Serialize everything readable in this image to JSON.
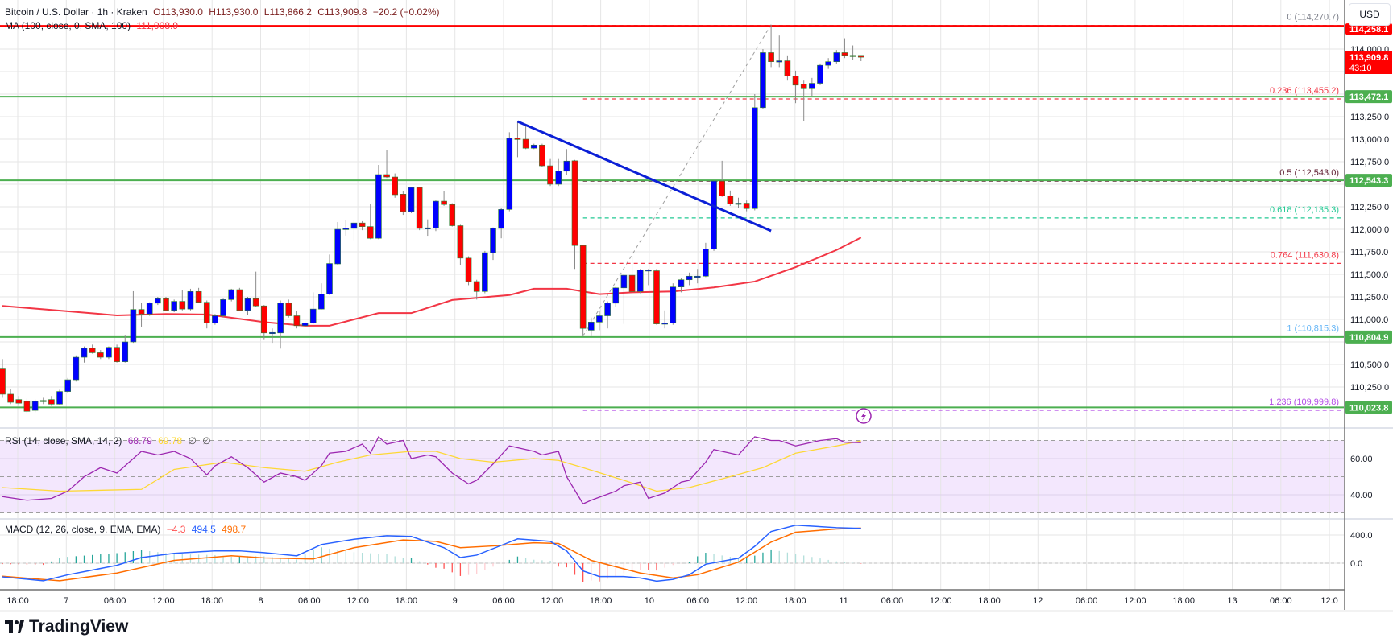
{
  "header": {
    "symbol": "Bitcoin / U.S. Dollar · 1h · Kraken",
    "open": "O113,930.0",
    "high": "H113,930.0",
    "low": "L113,866.2",
    "close": "C113,909.8",
    "change": "−20.2 (−0.02%)",
    "ma_label": "MA (100, close, 0, SMA, 100)",
    "ma_value": "111,908.9"
  },
  "currency_button": "USD",
  "colors": {
    "up": "#0000ff",
    "down": "#ff0000",
    "ma": "#f23645",
    "support": "#4caf50",
    "resistance": "#ff0000",
    "trendline": "#0b1fd6",
    "rsi": "#9c27b0",
    "rsi_sma": "#fdd835",
    "macd": "#2962ff",
    "signal": "#ff6d00"
  },
  "price_axis": {
    "ticks": [
      "114,000.0",
      "113,250.0",
      "113,000.0",
      "112,750.0",
      "112,250.0",
      "112,000.0",
      "111,750.0",
      "111,500.0",
      "111,250.0",
      "111,000.0",
      "110,500.0",
      "110,250.0"
    ],
    "tick_values": [
      114000,
      113250,
      113000,
      112750,
      112250,
      112000,
      111750,
      111500,
      111250,
      111000,
      110500,
      110250
    ],
    "current_price": "113,909.8",
    "countdown": "43:10",
    "resistance_label": "114,258.1",
    "resistance_value": 114258.1,
    "support_levels": [
      {
        "label": "113,472.1",
        "value": 113472.1
      },
      {
        "label": "112,543.3",
        "value": 112543.3
      },
      {
        "label": "110,804.9",
        "value": 110804.9
      },
      {
        "label": "110,023.8",
        "value": 110023.8
      }
    ]
  },
  "fibonacci": [
    {
      "label": "0 (114,270.7)",
      "value": 114270.7,
      "color": "#787b86"
    },
    {
      "label": "0.236 (113,455.2)",
      "value": 113455.2,
      "color": "#f23645"
    },
    {
      "label": "0.5 (112,543.0)",
      "value": 112543.0,
      "color": "#5d1a2e"
    },
    {
      "label": "0.618 (112,135.3)",
      "value": 112135.3,
      "color": "#22c993"
    },
    {
      "label": "0.764 (111,630.8)",
      "value": 111630.8,
      "color": "#f23645"
    },
    {
      "label": "1 (110,815.3)",
      "value": 110815.3,
      "color": "#64b5f6"
    },
    {
      "label": "1.236 (109,999.8)",
      "value": 109999.8,
      "color": "#b44ee6"
    }
  ],
  "time_axis": [
    "18:00",
    "7",
    "06:00",
    "12:00",
    "18:00",
    "8",
    "06:00",
    "12:00",
    "18:00",
    "9",
    "06:00",
    "12:00",
    "18:00",
    "10",
    "06:00",
    "12:00",
    "18:00",
    "11",
    "06:00",
    "12:00",
    "18:00",
    "12",
    "06:00",
    "12:00",
    "18:00",
    "13",
    "06:00",
    "12:0"
  ],
  "rsi": {
    "label": "RSI (14, close, SMA, 14, 2)",
    "value": "68.79",
    "sma_value": "69.78",
    "na1": "∅",
    "na2": "∅",
    "ticks": [
      "60.00",
      "40.00"
    ],
    "tick_values": [
      60,
      40
    ],
    "bands": [
      70,
      50,
      30
    ]
  },
  "macd": {
    "label": "MACD (12, 26, close, 9, EMA, EMA)",
    "hist_value": "−4.3",
    "macd_value": "494.5",
    "signal_value": "498.7",
    "ticks": [
      "400.0",
      "0.0"
    ],
    "tick_values": [
      400,
      0
    ]
  },
  "logo": "TradingView",
  "chart_data": {
    "type": "candlestick",
    "interval": "1h",
    "ylim": [
      109700,
      114500
    ],
    "candles_ohlc": [
      [
        110450,
        110560,
        110130,
        110170
      ],
      [
        110170,
        110230,
        110060,
        110080
      ],
      [
        110110,
        110150,
        110040,
        110070
      ],
      [
        110090,
        110120,
        109960,
        109980
      ],
      [
        109990,
        110110,
        109970,
        110090
      ],
      [
        110090,
        110130,
        110060,
        110100
      ],
      [
        110110,
        110150,
        110040,
        110060
      ],
      [
        110060,
        110220,
        110050,
        110200
      ],
      [
        110200,
        110350,
        110180,
        110330
      ],
      [
        110330,
        110600,
        110310,
        110580
      ],
      [
        110580,
        110700,
        110520,
        110680
      ],
      [
        110680,
        110720,
        110620,
        110630
      ],
      [
        110630,
        110660,
        110560,
        110580
      ],
      [
        110580,
        110700,
        110560,
        110690
      ],
      [
        110690,
        110720,
        110520,
        110530
      ],
      [
        110530,
        110820,
        110520,
        110750
      ],
      [
        110750,
        111313,
        110740,
        111110
      ],
      [
        111110,
        111180,
        110920,
        111060
      ],
      [
        111060,
        111190,
        111040,
        111180
      ],
      [
        111180,
        111250,
        111160,
        111230
      ],
      [
        111230,
        111250,
        111090,
        111100
      ],
      [
        111100,
        111220,
        111080,
        111200
      ],
      [
        111200,
        111330,
        111100,
        111115
      ],
      [
        111115,
        111340,
        111100,
        111310
      ],
      [
        111310,
        111350,
        111180,
        111190
      ],
      [
        111190,
        111210,
        110900,
        110960
      ],
      [
        110960,
        111060,
        110940,
        111040
      ],
      [
        111040,
        111230,
        111020,
        111220
      ],
      [
        111220,
        111340,
        111200,
        111330
      ],
      [
        111330,
        111350,
        111090,
        111100
      ],
      [
        111100,
        111250,
        111050,
        111230
      ],
      [
        111230,
        111530,
        111140,
        111150
      ],
      [
        111150,
        111160,
        110780,
        110850
      ],
      [
        110850,
        110900,
        110740,
        110855
      ],
      [
        110850,
        111210,
        110676,
        111180
      ],
      [
        111180,
        111220,
        111020,
        111040
      ],
      [
        111040,
        111090,
        110900,
        110930
      ],
      [
        110930,
        110980,
        110910,
        110960
      ],
      [
        110960,
        111300,
        110950,
        111115
      ],
      [
        111115,
        111400,
        111110,
        111280
      ],
      [
        111280,
        111720,
        111270,
        111620
      ],
      [
        111616,
        112080,
        111600,
        112000
      ],
      [
        112000,
        112100,
        111930,
        112010
      ],
      [
        112010,
        112100,
        111880,
        112070
      ],
      [
        112070,
        112090,
        111990,
        112030
      ],
      [
        112030,
        112280,
        111890,
        111900
      ],
      [
        111900,
        112714,
        111890,
        112607
      ],
      [
        112607,
        112875,
        112570,
        112580
      ],
      [
        112580,
        112620,
        112350,
        112384
      ],
      [
        112390,
        112420,
        112160,
        112196
      ],
      [
        112196,
        112470,
        112180,
        112464
      ],
      [
        112464,
        112470,
        111990,
        112010
      ],
      [
        112016,
        112110,
        111928,
        112016
      ],
      [
        112016,
        112320,
        111980,
        112312
      ],
      [
        112312,
        112420,
        112260,
        112275
      ],
      [
        112275,
        112290,
        112030,
        112040
      ],
      [
        112040,
        112050,
        111600,
        111680
      ],
      [
        111680,
        111700,
        111380,
        111420
      ],
      [
        111420,
        111440,
        111220,
        111310
      ],
      [
        111310,
        111760,
        111290,
        111740
      ],
      [
        111740,
        112020,
        111660,
        112010
      ],
      [
        112010,
        112240,
        111900,
        112220
      ],
      [
        112220,
        113077,
        112200,
        113010
      ],
      [
        113010,
        113205,
        112800,
        113000
      ],
      [
        113000,
        113170,
        112890,
        112900
      ],
      [
        112900,
        112950,
        112890,
        112935
      ],
      [
        112935,
        112950,
        112690,
        112705
      ],
      [
        112705,
        112780,
        112480,
        112500
      ],
      [
        112500,
        112780,
        112480,
        112645
      ],
      [
        112645,
        112890,
        112600,
        112757
      ],
      [
        112760,
        112770,
        111560,
        111820
      ],
      [
        111820,
        111830,
        110815,
        110900
      ],
      [
        110880,
        111020,
        110815,
        110970
      ],
      [
        110970,
        111100,
        110880,
        111040
      ],
      [
        111040,
        111200,
        110900,
        111180
      ],
      [
        111180,
        111360,
        111140,
        111350
      ],
      [
        111350,
        111500,
        110950,
        111490
      ],
      [
        111490,
        111700,
        111300,
        111310
      ],
      [
        111310,
        111560,
        111290,
        111550
      ],
      [
        111550,
        111560,
        111380,
        111550
      ],
      [
        111540,
        111560,
        110940,
        110950
      ],
      [
        110960,
        111100,
        110900,
        110960
      ],
      [
        110960,
        111400,
        110940,
        111360
      ],
      [
        111360,
        111460,
        111300,
        111440
      ],
      [
        111440,
        111520,
        111380,
        111480
      ],
      [
        111480,
        111560,
        111400,
        111480
      ],
      [
        111480,
        111850,
        111470,
        111780
      ],
      [
        111780,
        112540,
        111760,
        112535
      ],
      [
        112535,
        112760,
        112360,
        112370
      ],
      [
        112370,
        112430,
        112260,
        112280
      ],
      [
        112290,
        112350,
        112240,
        112290
      ],
      [
        112290,
        112320,
        112200,
        112230
      ],
      [
        112230,
        113500,
        112210,
        113350
      ],
      [
        113350,
        114000,
        113340,
        113960
      ],
      [
        113960,
        114270,
        113800,
        113860
      ],
      [
        113860,
        114150,
        113800,
        113870
      ],
      [
        113870,
        113930,
        113650,
        113700
      ],
      [
        113700,
        113760,
        113400,
        113600
      ],
      [
        113610,
        113650,
        113200,
        113560
      ],
      [
        113560,
        113680,
        113480,
        113620
      ],
      [
        113620,
        113840,
        113600,
        113820
      ],
      [
        113820,
        113900,
        113780,
        113860
      ],
      [
        113860,
        113990,
        113840,
        113960
      ],
      [
        113960,
        114120,
        113900,
        113930
      ],
      [
        113930,
        114040,
        113880,
        113920
      ],
      [
        113930,
        113930,
        113866.2,
        113909.8
      ]
    ],
    "ma100": [
      [
        0,
        111150
      ],
      [
        14,
        111045
      ],
      [
        20,
        111060
      ],
      [
        25,
        111055
      ],
      [
        32,
        110970
      ],
      [
        37,
        110930
      ],
      [
        40,
        110930
      ],
      [
        46,
        111070
      ],
      [
        50,
        111070
      ],
      [
        55,
        111215
      ],
      [
        62,
        111270
      ],
      [
        65,
        111340
      ],
      [
        69,
        111340
      ],
      [
        73,
        111280
      ],
      [
        77,
        111300
      ],
      [
        82,
        111310
      ],
      [
        87,
        111355
      ],
      [
        92,
        111420
      ],
      [
        97,
        111580
      ],
      [
        102,
        111770
      ],
      [
        105,
        111908.9
      ]
    ],
    "trendline": {
      "from": [
        63,
        113196
      ],
      "to": [
        94,
        111982
      ]
    },
    "fib_anchor": {
      "from": [
        71,
        110815.3
      ],
      "to": [
        94,
        114270.7
      ]
    },
    "rsi_series": [
      [
        0,
        39
      ],
      [
        3,
        37
      ],
      [
        6,
        38
      ],
      [
        8,
        42
      ],
      [
        10,
        50
      ],
      [
        12,
        55
      ],
      [
        14,
        52
      ],
      [
        16,
        60
      ],
      [
        17,
        64
      ],
      [
        19,
        62
      ],
      [
        21,
        64
      ],
      [
        23,
        60
      ],
      [
        25,
        51
      ],
      [
        26,
        56
      ],
      [
        28,
        61
      ],
      [
        30,
        55
      ],
      [
        32,
        47
      ],
      [
        34,
        52
      ],
      [
        36,
        50
      ],
      [
        37,
        48
      ],
      [
        39,
        56
      ],
      [
        40,
        63
      ],
      [
        42,
        64
      ],
      [
        44,
        68
      ],
      [
        45,
        63
      ],
      [
        46,
        72
      ],
      [
        47,
        68
      ],
      [
        49,
        70
      ],
      [
        50,
        60
      ],
      [
        52,
        62
      ],
      [
        53,
        61
      ],
      [
        55,
        52
      ],
      [
        57,
        46
      ],
      [
        58,
        48
      ],
      [
        60,
        57
      ],
      [
        62,
        67
      ],
      [
        63,
        66
      ],
      [
        65,
        64
      ],
      [
        66,
        62
      ],
      [
        68,
        64
      ],
      [
        69,
        50
      ],
      [
        71,
        35
      ],
      [
        72,
        37
      ],
      [
        75,
        42
      ],
      [
        76,
        45
      ],
      [
        78,
        47
      ],
      [
        79,
        38
      ],
      [
        81,
        41
      ],
      [
        83,
        47
      ],
      [
        84,
        48
      ],
      [
        86,
        58
      ],
      [
        87,
        65
      ],
      [
        89,
        63
      ],
      [
        90,
        62
      ],
      [
        92,
        72
      ],
      [
        94,
        70
      ],
      [
        95,
        70
      ],
      [
        97,
        67
      ],
      [
        98,
        68
      ],
      [
        100,
        70
      ],
      [
        102,
        71
      ],
      [
        103,
        69
      ],
      [
        105,
        68.79
      ]
    ],
    "rsi_sma_series": [
      [
        0,
        44
      ],
      [
        7,
        42
      ],
      [
        17,
        43
      ],
      [
        21,
        54
      ],
      [
        27,
        58
      ],
      [
        32,
        55
      ],
      [
        37,
        53
      ],
      [
        41,
        58
      ],
      [
        45,
        62
      ],
      [
        50,
        64
      ],
      [
        53,
        64
      ],
      [
        56,
        60
      ],
      [
        60,
        58
      ],
      [
        65,
        60
      ],
      [
        68,
        59
      ],
      [
        71,
        55
      ],
      [
        76,
        48
      ],
      [
        80,
        42
      ],
      [
        84,
        44
      ],
      [
        89,
        50
      ],
      [
        93,
        55
      ],
      [
        97,
        63
      ],
      [
        102,
        67
      ],
      [
        105,
        69.78
      ]
    ],
    "macd_series": [
      [
        0,
        -195
      ],
      [
        5,
        -250
      ],
      [
        8,
        -165
      ],
      [
        14,
        -30
      ],
      [
        17,
        80
      ],
      [
        21,
        140
      ],
      [
        26,
        175
      ],
      [
        29,
        175
      ],
      [
        32,
        150
      ],
      [
        36,
        105
      ],
      [
        39,
        265
      ],
      [
        43,
        340
      ],
      [
        47,
        390
      ],
      [
        50,
        380
      ],
      [
        54,
        220
      ],
      [
        56,
        80
      ],
      [
        58,
        115
      ],
      [
        63,
        345
      ],
      [
        67,
        310
      ],
      [
        69,
        175
      ],
      [
        71,
        -110
      ],
      [
        73,
        -190
      ],
      [
        76,
        -190
      ],
      [
        78,
        -210
      ],
      [
        80,
        -255
      ],
      [
        82,
        -230
      ],
      [
        84,
        -165
      ],
      [
        86,
        -15
      ],
      [
        90,
        70
      ],
      [
        92,
        240
      ],
      [
        94,
        450
      ],
      [
        97,
        540
      ],
      [
        102,
        505
      ],
      [
        105,
        494.5
      ]
    ],
    "signal_series": [
      [
        0,
        -185
      ],
      [
        7,
        -250
      ],
      [
        14,
        -140
      ],
      [
        21,
        40
      ],
      [
        28,
        105
      ],
      [
        32,
        75
      ],
      [
        38,
        60
      ],
      [
        43,
        220
      ],
      [
        49,
        330
      ],
      [
        53,
        310
      ],
      [
        56,
        220
      ],
      [
        60,
        245
      ],
      [
        65,
        290
      ],
      [
        68,
        280
      ],
      [
        72,
        40
      ],
      [
        78,
        -140
      ],
      [
        82,
        -210
      ],
      [
        85,
        -165
      ],
      [
        90,
        15
      ],
      [
        94,
        300
      ],
      [
        97,
        440
      ],
      [
        102,
        485
      ],
      [
        105,
        498.7
      ]
    ]
  }
}
